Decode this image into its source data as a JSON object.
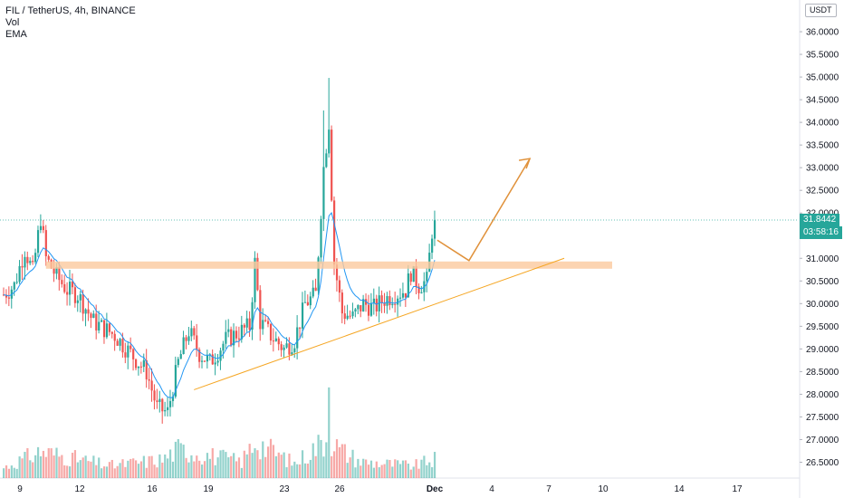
{
  "legend": {
    "title": "FIL / TetherUS, 4h, BINANCE",
    "indicator_vol": "Vol",
    "indicator_ema": "EMA"
  },
  "price_axis": {
    "unit": "USDT"
  },
  "last_price": {
    "value": "31.8442",
    "countdown": "03:58:16"
  },
  "colors": {
    "up": "#26a69a",
    "down": "#ef5350",
    "ema": "#2196f3",
    "resistance_zone": "#fbc99d",
    "trendline": "#f5a623",
    "projection": "#e0913a"
  },
  "chart_data": {
    "type": "candlestick",
    "title": "FIL / TetherUS, 4h, BINANCE",
    "xlabel": "",
    "ylabel": "",
    "ylim": [
      26.35,
      36.6
    ],
    "x_ticks": [
      "9",
      "12",
      "16",
      "19",
      "23",
      "26",
      "Dec",
      "4",
      "7",
      "10",
      "14",
      "17"
    ],
    "y_ticks": [
      "26.5000",
      "27.0000",
      "27.5000",
      "28.0000",
      "28.5000",
      "29.0000",
      "29.5000",
      "30.0000",
      "30.5000",
      "31.0000",
      "31.5000",
      "32.0000",
      "32.5000",
      "33.0000",
      "33.5000",
      "34.0000",
      "34.5000",
      "35.0000",
      "35.5000",
      "36.0000"
    ],
    "keypoints": [
      {
        "t": 0,
        "p": 30.2
      },
      {
        "t": 4,
        "p": 30.4
      },
      {
        "t": 8,
        "p": 31.2
      },
      {
        "t": 11,
        "p": 30.7
      },
      {
        "t": 14,
        "p": 31.9
      },
      {
        "t": 16,
        "p": 31.0
      },
      {
        "t": 20,
        "p": 30.6
      },
      {
        "t": 24,
        "p": 30.3
      },
      {
        "t": 28,
        "p": 30.2
      },
      {
        "t": 34,
        "p": 29.6
      },
      {
        "t": 42,
        "p": 29.3
      },
      {
        "t": 48,
        "p": 28.9
      },
      {
        "t": 54,
        "p": 28.5
      },
      {
        "t": 58,
        "p": 27.7
      },
      {
        "t": 62,
        "p": 27.6
      },
      {
        "t": 66,
        "p": 28.7
      },
      {
        "t": 70,
        "p": 29.4
      },
      {
        "t": 74,
        "p": 28.9
      },
      {
        "t": 78,
        "p": 28.7
      },
      {
        "t": 84,
        "p": 29.2
      },
      {
        "t": 90,
        "p": 29.4
      },
      {
        "t": 93,
        "p": 29.5
      },
      {
        "t": 95,
        "p": 30.9
      },
      {
        "t": 97,
        "p": 29.6
      },
      {
        "t": 101,
        "p": 29.3
      },
      {
        "t": 106,
        "p": 29.0
      },
      {
        "t": 110,
        "p": 29.2
      },
      {
        "t": 114,
        "p": 30.0
      },
      {
        "t": 118,
        "p": 30.2
      },
      {
        "t": 121,
        "p": 33.0
      },
      {
        "t": 123,
        "p": 34.0
      },
      {
        "t": 125,
        "p": 30.9
      },
      {
        "t": 128,
        "p": 29.8
      },
      {
        "t": 132,
        "p": 29.7
      },
      {
        "t": 136,
        "p": 30.0
      },
      {
        "t": 140,
        "p": 29.9
      },
      {
        "t": 144,
        "p": 30.1
      },
      {
        "t": 148,
        "p": 30.2
      },
      {
        "t": 152,
        "p": 30.3
      },
      {
        "t": 154,
        "p": 30.7
      },
      {
        "t": 157,
        "p": 30.4
      },
      {
        "t": 160,
        "p": 30.5
      },
      {
        "t": 162,
        "p": 31.6
      },
      {
        "t": 163,
        "p": 31.84
      }
    ],
    "volume_keypoints": [
      {
        "t": 0,
        "v": 0.25
      },
      {
        "t": 14,
        "v": 0.65
      },
      {
        "t": 40,
        "v": 0.3
      },
      {
        "t": 60,
        "v": 0.45
      },
      {
        "t": 66,
        "v": 0.7
      },
      {
        "t": 90,
        "v": 0.4
      },
      {
        "t": 95,
        "v": 0.9
      },
      {
        "t": 110,
        "v": 0.35
      },
      {
        "t": 123,
        "v": 1.0
      },
      {
        "t": 127,
        "v": 0.7
      },
      {
        "t": 135,
        "v": 0.4
      },
      {
        "t": 155,
        "v": 0.3
      },
      {
        "t": 163,
        "v": 0.45
      }
    ],
    "annotations": {
      "resistance_zone": {
        "p_low": 30.77,
        "p_high": 30.93
      },
      "support_trendline": [
        {
          "t": 72,
          "p": 28.1
        },
        {
          "t": 212,
          "p": 31.0
        }
      ],
      "projection_path": [
        {
          "t": 164,
          "p": 31.4
        },
        {
          "t": 176,
          "p": 30.95
        },
        {
          "t": 199,
          "p": 33.2
        }
      ]
    }
  }
}
